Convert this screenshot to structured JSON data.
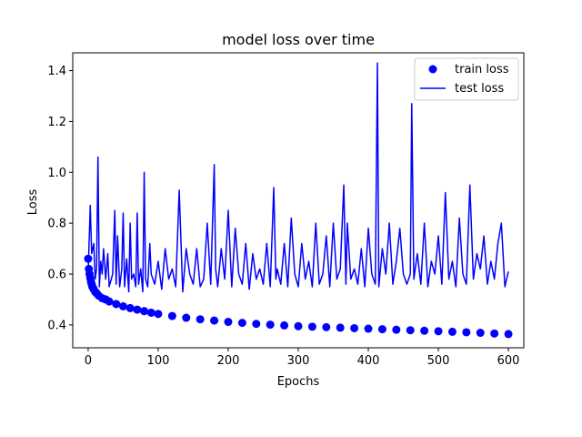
{
  "chart_data": {
    "type": "line",
    "title": "model loss over time",
    "xlabel": "Epochs",
    "ylabel": "Loss",
    "xlim": [
      -22,
      622
    ],
    "ylim": [
      0.31,
      1.47
    ],
    "xticks": [
      "0",
      "100",
      "200",
      "300",
      "400",
      "500",
      "600"
    ],
    "yticks": [
      "0.4",
      "0.6",
      "0.8",
      "1.0",
      "1.2",
      "1.4"
    ],
    "xtick_values": [
      0,
      100,
      200,
      300,
      400,
      500,
      600
    ],
    "ytick_values": [
      0.4,
      0.6,
      0.8,
      1.0,
      1.2,
      1.4
    ],
    "legend_position": "upper right",
    "grid": false,
    "color": "#0000ff",
    "series": [
      {
        "name": "train loss",
        "style": "markers",
        "x": [
          0,
          1,
          2,
          3,
          4,
          5,
          6,
          7,
          8,
          10,
          12,
          15,
          20,
          25,
          30,
          40,
          50,
          60,
          70,
          80,
          90,
          100,
          120,
          140,
          160,
          180,
          200,
          220,
          240,
          260,
          280,
          300,
          320,
          340,
          360,
          380,
          400,
          420,
          440,
          460,
          480,
          500,
          520,
          540,
          560,
          580,
          600
        ],
        "values": [
          0.66,
          0.62,
          0.6,
          0.585,
          0.57,
          0.56,
          0.55,
          0.545,
          0.54,
          0.53,
          0.525,
          0.515,
          0.505,
          0.5,
          0.492,
          0.482,
          0.473,
          0.466,
          0.46,
          0.454,
          0.448,
          0.443,
          0.435,
          0.428,
          0.422,
          0.417,
          0.412,
          0.408,
          0.404,
          0.401,
          0.398,
          0.395,
          0.393,
          0.391,
          0.389,
          0.387,
          0.385,
          0.383,
          0.381,
          0.379,
          0.377,
          0.375,
          0.373,
          0.371,
          0.369,
          0.366,
          0.364
        ]
      },
      {
        "name": "test loss",
        "style": "line",
        "x": [
          0,
          3,
          5,
          8,
          10,
          12,
          14,
          16,
          18,
          20,
          22,
          25,
          28,
          30,
          35,
          38,
          40,
          42,
          45,
          48,
          50,
          52,
          55,
          58,
          60,
          62,
          65,
          68,
          70,
          72,
          75,
          78,
          80,
          82,
          85,
          88,
          90,
          95,
          100,
          105,
          110,
          115,
          120,
          125,
          130,
          135,
          140,
          145,
          150,
          155,
          160,
          165,
          170,
          175,
          180,
          182,
          185,
          190,
          195,
          200,
          205,
          210,
          215,
          220,
          225,
          230,
          235,
          240,
          245,
          250,
          255,
          260,
          265,
          268,
          270,
          275,
          280,
          285,
          290,
          295,
          300,
          305,
          310,
          315,
          320,
          325,
          330,
          335,
          340,
          345,
          350,
          355,
          360,
          365,
          368,
          370,
          375,
          380,
          385,
          390,
          395,
          400,
          405,
          410,
          413,
          415,
          420,
          425,
          430,
          435,
          440,
          445,
          450,
          455,
          460,
          462,
          465,
          470,
          475,
          480,
          485,
          490,
          495,
          500,
          505,
          510,
          515,
          520,
          525,
          530,
          535,
          540,
          545,
          550,
          555,
          560,
          565,
          570,
          575,
          580,
          585,
          590,
          595,
          600
        ],
        "values": [
          0.6,
          0.87,
          0.68,
          0.72,
          0.58,
          0.62,
          1.06,
          0.55,
          0.65,
          0.6,
          0.7,
          0.58,
          0.68,
          0.55,
          0.6,
          0.85,
          0.56,
          0.75,
          0.55,
          0.62,
          0.84,
          0.55,
          0.66,
          0.53,
          0.8,
          0.58,
          0.6,
          0.55,
          0.84,
          0.56,
          0.62,
          0.53,
          1.0,
          0.58,
          0.55,
          0.72,
          0.6,
          0.56,
          0.65,
          0.54,
          0.7,
          0.58,
          0.62,
          0.55,
          0.93,
          0.53,
          0.7,
          0.6,
          0.56,
          0.7,
          0.55,
          0.58,
          0.8,
          0.56,
          1.03,
          0.62,
          0.55,
          0.7,
          0.58,
          0.85,
          0.55,
          0.78,
          0.6,
          0.56,
          0.72,
          0.54,
          0.68,
          0.58,
          0.62,
          0.56,
          0.72,
          0.55,
          0.94,
          0.58,
          0.62,
          0.56,
          0.72,
          0.55,
          0.82,
          0.6,
          0.55,
          0.72,
          0.58,
          0.65,
          0.55,
          0.8,
          0.56,
          0.6,
          0.75,
          0.55,
          0.8,
          0.58,
          0.62,
          0.95,
          0.56,
          0.8,
          0.58,
          0.62,
          0.56,
          0.7,
          0.55,
          0.78,
          0.6,
          0.56,
          1.43,
          0.55,
          0.7,
          0.6,
          0.8,
          0.56,
          0.65,
          0.78,
          0.6,
          0.56,
          0.6,
          1.27,
          0.58,
          0.68,
          0.56,
          0.8,
          0.55,
          0.65,
          0.6,
          0.75,
          0.56,
          0.92,
          0.58,
          0.65,
          0.55,
          0.82,
          0.6,
          0.56,
          0.95,
          0.58,
          0.68,
          0.62,
          0.75,
          0.56,
          0.65,
          0.58,
          0.72,
          0.8,
          0.55,
          0.61
        ]
      }
    ]
  }
}
